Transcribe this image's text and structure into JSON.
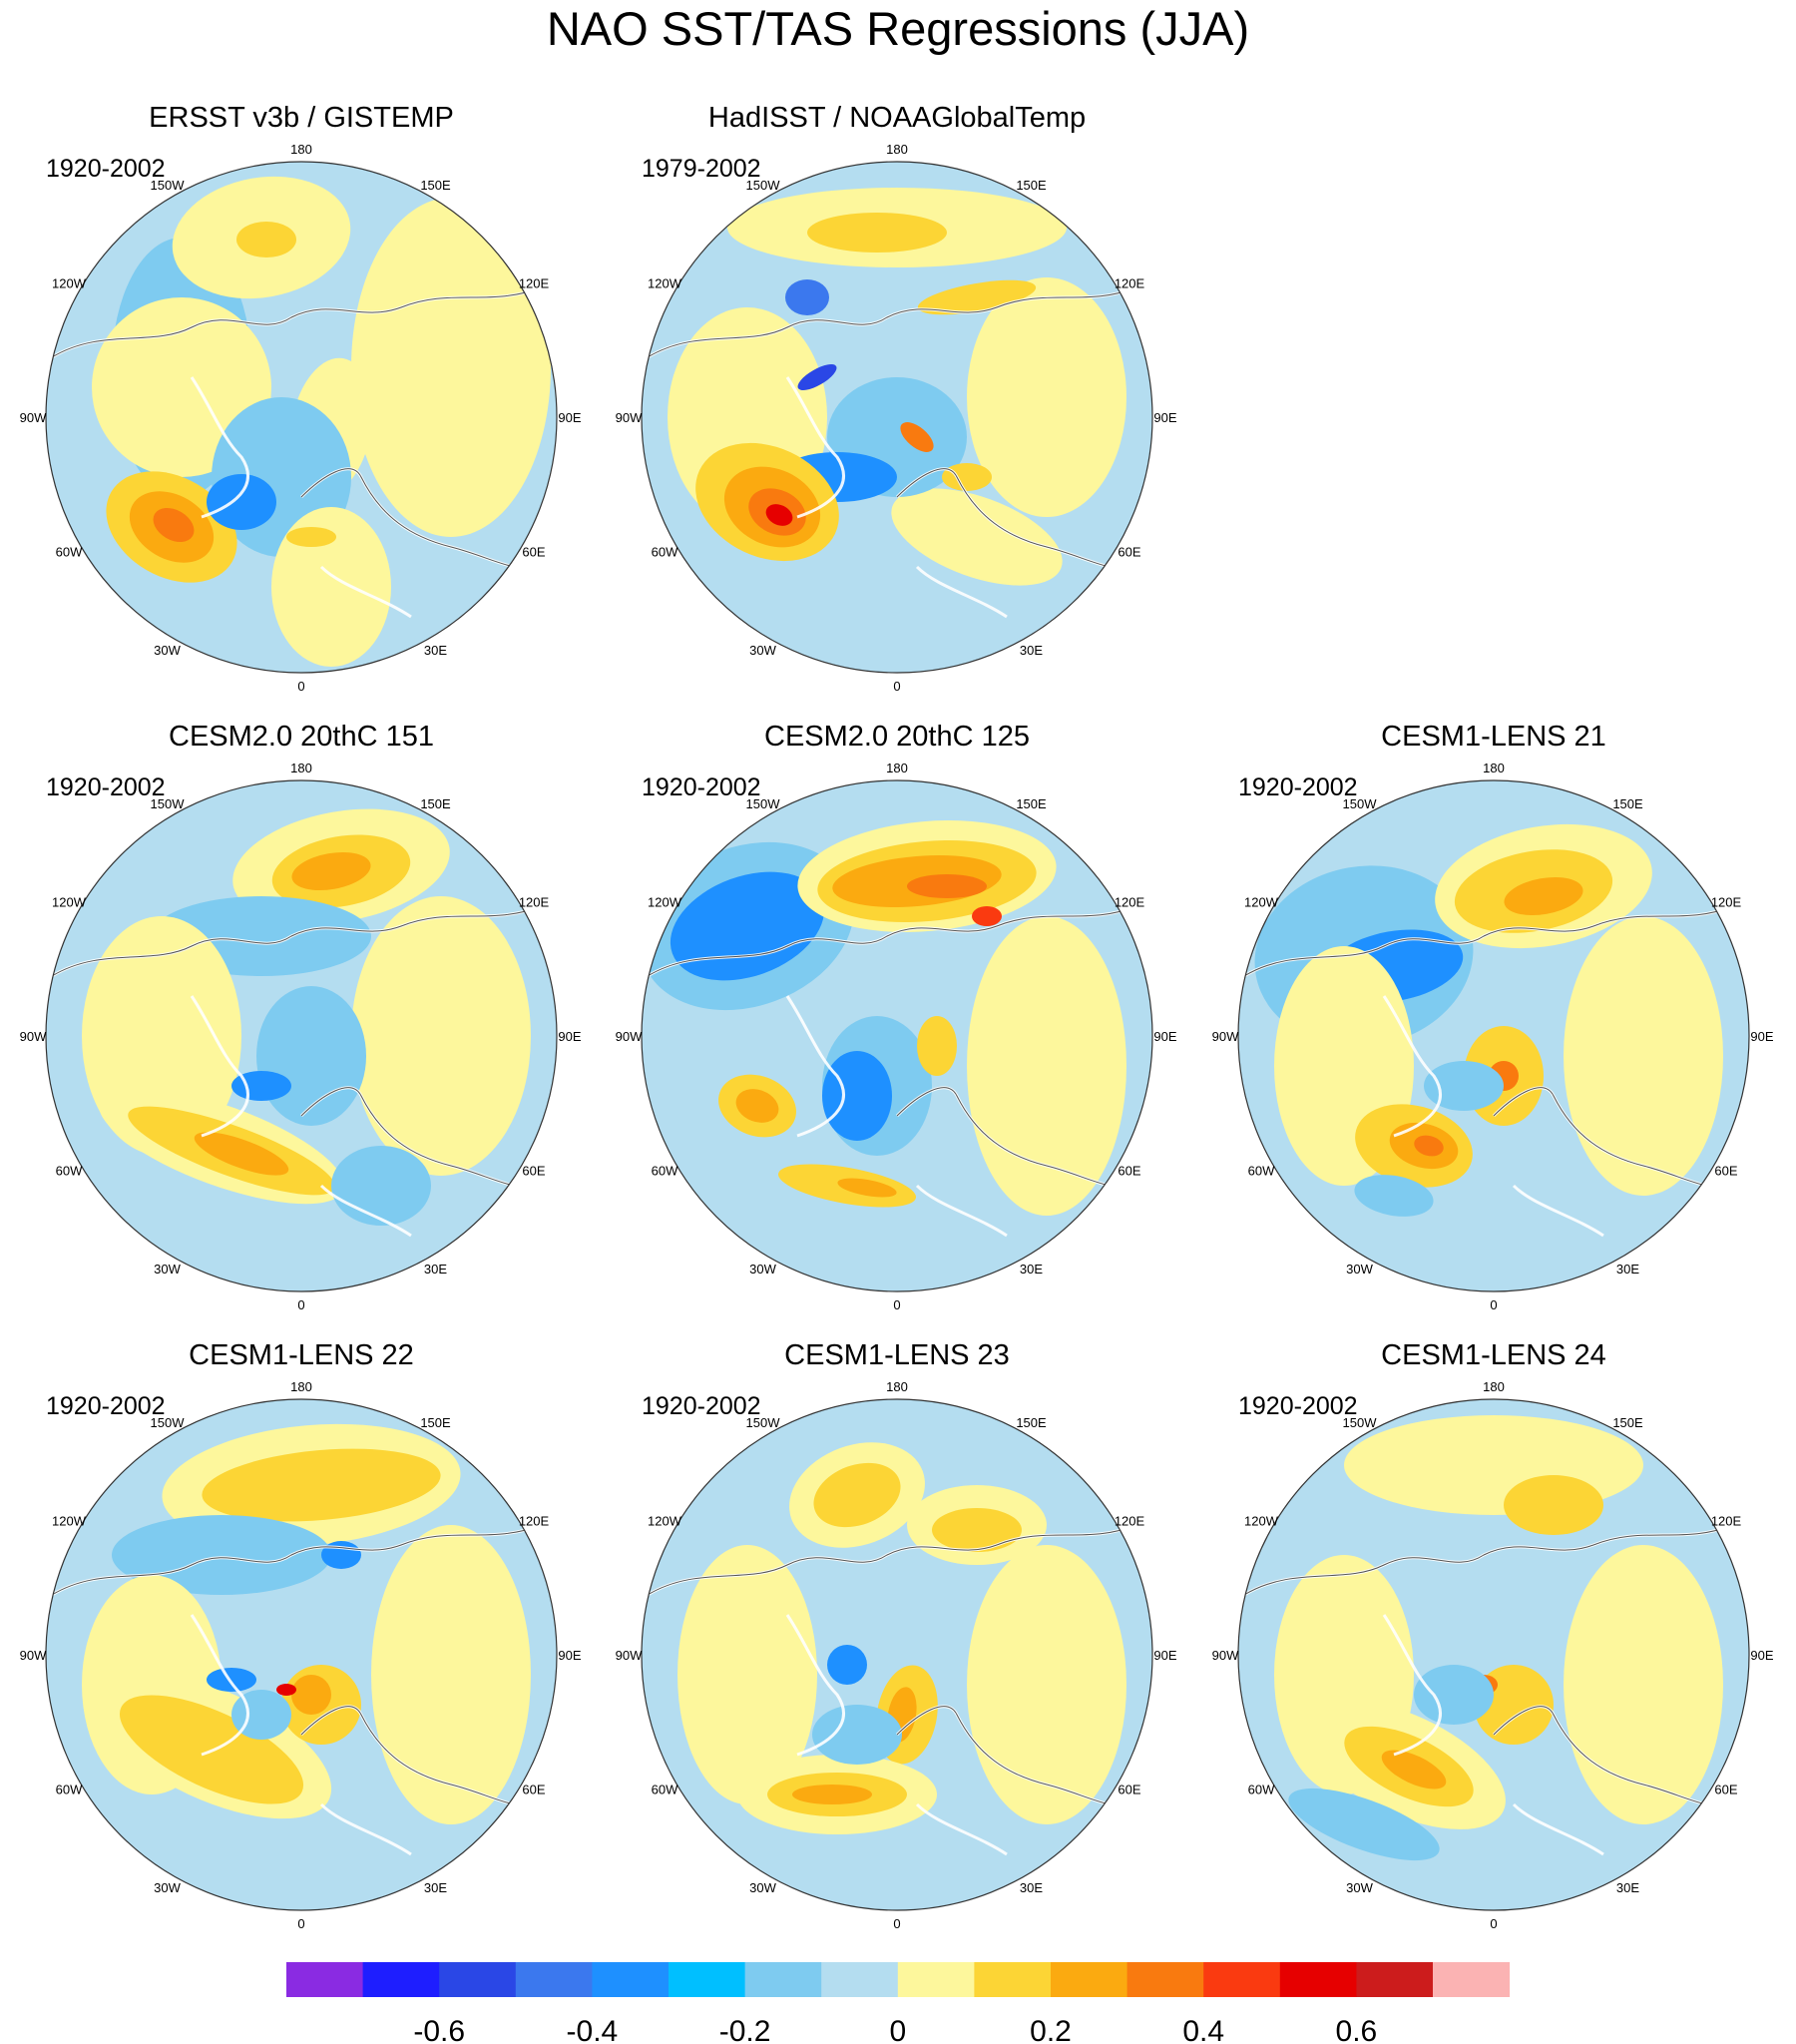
{
  "title": "NAO SST/TAS Regressions (JJA)",
  "lon_labels": [
    "180",
    "150E",
    "120E",
    "90E",
    "60E",
    "30E",
    "0",
    "30W",
    "60W",
    "90W",
    "120W",
    "150W"
  ],
  "panels": [
    {
      "title": "ERSST v3b / GISTEMP",
      "period": "1920-2002"
    },
    {
      "title": "HadISST / NOAAGlobalTemp",
      "period": "1979-2002"
    },
    {
      "title": "CESM2.0 20thC 151",
      "period": "1920-2002"
    },
    {
      "title": "CESM2.0 20thC 125",
      "period": "1920-2002"
    },
    {
      "title": "CESM1-LENS 21",
      "period": "1920-2002"
    },
    {
      "title": "CESM1-LENS 22",
      "period": "1920-2002"
    },
    {
      "title": "CESM1-LENS 23",
      "period": "1920-2002"
    },
    {
      "title": "CESM1-LENS 24",
      "period": "1920-2002"
    }
  ],
  "colorbar": {
    "colors": [
      "#8a2be2",
      "#1e1eff",
      "#2a47e6",
      "#3b78ee",
      "#1e90ff",
      "#00bfff",
      "#7ecbf0",
      "#b4ddf0",
      "#fdf79c",
      "#fcd535",
      "#fbaa10",
      "#f97a0f",
      "#fa3a10",
      "#e60000",
      "#cc1c1c",
      "#fbb3b3"
    ],
    "tick_labels": [
      "-0.6",
      "-0.4",
      "-0.2",
      "0",
      "0.2",
      "0.4",
      "0.6"
    ]
  }
}
